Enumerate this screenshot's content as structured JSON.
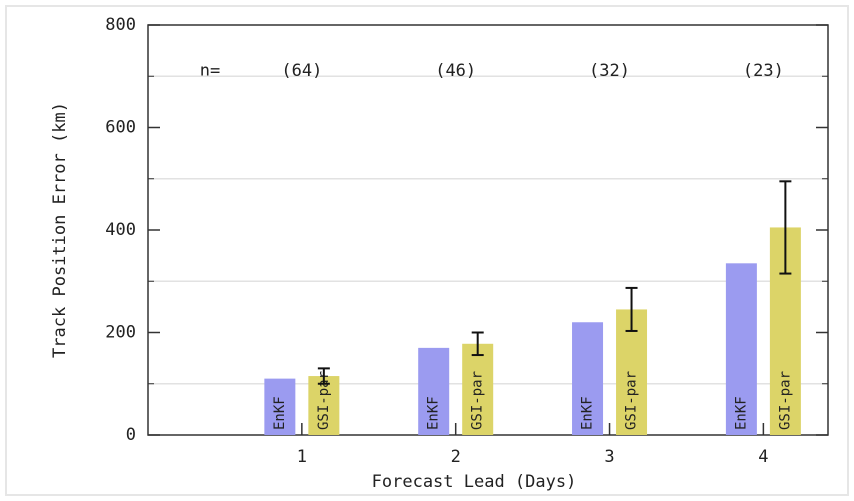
{
  "chart_data": {
    "type": "bar",
    "x_label": "Forecast Lead (Days)",
    "y_label": "Track Position Error (km)",
    "categories": [
      "1",
      "2",
      "3",
      "4"
    ],
    "series": [
      {
        "name": "EnKF",
        "color": "#9b9bf0",
        "values": [
          110,
          170,
          220,
          335
        ]
      },
      {
        "name": "GSI-par",
        "color": "#dcd468",
        "values": [
          115,
          178,
          245,
          405
        ],
        "errors": [
          15,
          22,
          42,
          90
        ]
      }
    ],
    "n_label": "n=",
    "n_values": [
      "(64)",
      "(46)",
      "(32)",
      "(23)"
    ],
    "ylim": [
      0,
      800
    ],
    "yticks": [
      0,
      200,
      400,
      600,
      800
    ],
    "minor_yticks": [
      100,
      300,
      500,
      700
    ],
    "grid": true
  }
}
